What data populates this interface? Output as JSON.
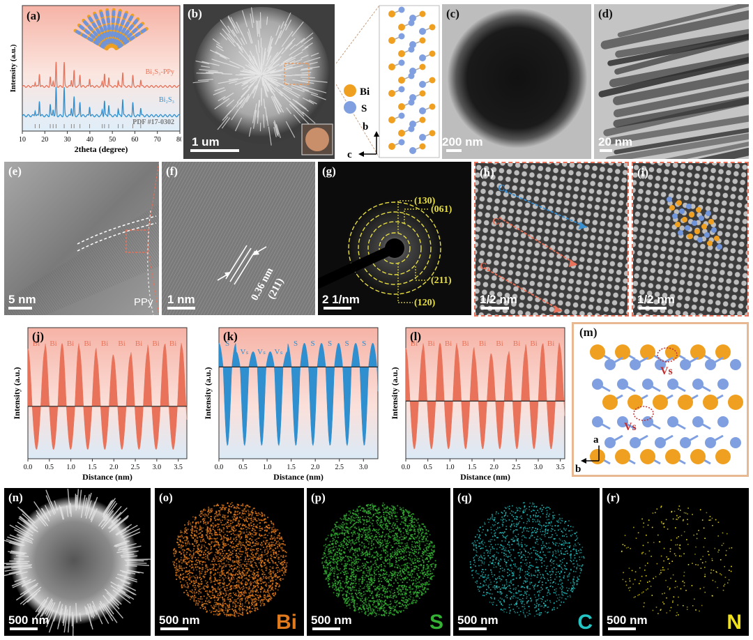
{
  "panels": {
    "a": {
      "label": "(a)"
    },
    "b": {
      "label": "(b)",
      "scalebar": "1 um"
    },
    "c": {
      "label": "(c)",
      "scalebar": "200 nm"
    },
    "d": {
      "label": "(d)",
      "scalebar": "20 nm"
    },
    "e": {
      "label": "(e)",
      "scalebar": "5 nm",
      "annotation": "PPy"
    },
    "f": {
      "label": "(f)",
      "scalebar": "1 nm",
      "spacing": "0.36 nm",
      "plane": "(211)"
    },
    "g": {
      "label": "(g)",
      "scalebar": "2 1/nm",
      "rings": [
        "(130)",
        "(061)",
        "(211)",
        "(120)"
      ]
    },
    "h": {
      "label": "(h)",
      "scalebar": "1/2 nm",
      "c1": "C₁",
      "c2": "C₂",
      "c3": "C₃"
    },
    "i": {
      "label": "(i)",
      "scalebar": "1/2 nm"
    },
    "m": {
      "label": "(m)",
      "vs": "Vs",
      "axis_a": "a",
      "axis_b": "b"
    },
    "n": {
      "label": "(n)",
      "scalebar": "500 nm"
    },
    "o": {
      "label": "(o)",
      "scalebar": "500 nm",
      "element": "Bi",
      "color": "#e07a1c"
    },
    "p": {
      "label": "(p)",
      "scalebar": "500 nm",
      "element": "S",
      "color": "#34b233"
    },
    "q": {
      "label": "(q)",
      "scalebar": "500 nm",
      "element": "C",
      "color": "#22c4c4"
    },
    "r": {
      "label": "(r)",
      "scalebar": "500 nm",
      "element": "N",
      "color": "#f0e21a"
    }
  },
  "structure_legend": {
    "bi": "Bi",
    "s": "S",
    "axis_b": "b",
    "axis_c": "c"
  },
  "chart_data": [
    {
      "id": "a",
      "type": "line",
      "xlabel": "2theta (degree)",
      "ylabel": "Intensity (a.u.)",
      "xlim": [
        10,
        80
      ],
      "xticks": [
        10,
        20,
        30,
        40,
        50,
        60,
        70,
        80
      ],
      "series": [
        {
          "name": "Bi₂S₃-PPy",
          "color": "#e8735a"
        },
        {
          "name": "Bi₂S₃",
          "color": "#2f8fcf"
        }
      ],
      "reference": "PDF #17-0302",
      "peaks": [
        15.7,
        17.6,
        22.4,
        23.7,
        25.0,
        28.6,
        31.8,
        33.0,
        35.6,
        39.9,
        45.5,
        46.5,
        48.4,
        52.6,
        54.6,
        59.1,
        62.6
      ]
    },
    {
      "id": "j",
      "type": "line",
      "xlabel": "Distance (nm)",
      "ylabel": "Intensity (a.u.)",
      "xlim": [
        0,
        3.7
      ],
      "xticks": [
        0.0,
        0.5,
        1.0,
        1.5,
        2.0,
        2.5,
        3.0,
        3.5
      ],
      "peak_labels": [
        "Bi",
        "Bi",
        "Bi",
        "Bi",
        "Bi",
        "Bi",
        "Bi",
        "Bi",
        "Bi"
      ],
      "color": "#e8735a"
    },
    {
      "id": "k",
      "type": "line",
      "xlabel": "Distance (nm)",
      "ylabel": "Intensity (a.u.)",
      "xlim": [
        0,
        3.3
      ],
      "xticks": [
        0.0,
        0.5,
        1.0,
        1.5,
        2.0,
        2.5,
        3.0
      ],
      "peak_labels": [
        "S",
        "Vₛ",
        "Vₛ",
        "Vₛ",
        "S",
        "S",
        "S",
        "S",
        "S"
      ],
      "color": "#2f8fcf"
    },
    {
      "id": "l",
      "type": "line",
      "xlabel": "Distance (nm)",
      "ylabel": "Intensity (a.u.)",
      "xlim": [
        0,
        3.6
      ],
      "xticks": [
        0.0,
        0.5,
        1.0,
        1.5,
        2.0,
        2.5,
        3.0,
        3.5
      ],
      "peak_labels": [
        "Bi",
        "Bi",
        "Bi",
        "Bi",
        "Bi",
        "Bi",
        "Bi",
        "Bi",
        "Bi"
      ],
      "color": "#e8735a"
    }
  ]
}
